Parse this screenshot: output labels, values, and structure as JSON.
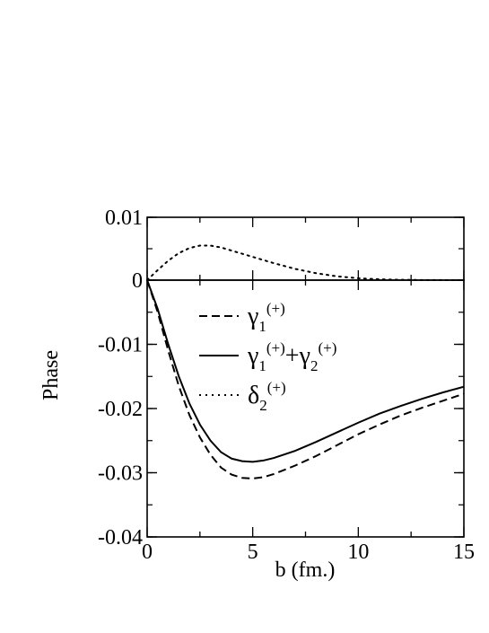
{
  "chart_data": {
    "type": "line",
    "panels": [
      {
        "id": "top",
        "ylim": [
          0,
          0.01
        ],
        "yticks": [
          "0.01",
          "0"
        ],
        "series": [
          {
            "name_ref": "delta2",
            "style": "dotted",
            "points": [
              [
                0,
                0
              ],
              [
                0.5,
                0.0016
              ],
              [
                1,
                0.0031
              ],
              [
                1.5,
                0.0043
              ],
              [
                2,
                0.0051
              ],
              [
                2.5,
                0.0055
              ],
              [
                3,
                0.0055
              ],
              [
                3.5,
                0.0052
              ],
              [
                4,
                0.0047
              ],
              [
                5,
                0.0037
              ],
              [
                6,
                0.0027
              ],
              [
                7,
                0.0018
              ],
              [
                8,
                0.0011
              ],
              [
                9,
                0.0006
              ],
              [
                10,
                0.0003
              ],
              [
                11,
                0.00013
              ],
              [
                12,
                6e-05
              ],
              [
                13,
                2e-05
              ],
              [
                14,
                1e-05
              ],
              [
                15,
                0
              ]
            ]
          }
        ]
      },
      {
        "id": "bottom",
        "ylim": [
          -0.04,
          0
        ],
        "yticks": [
          "-0.01",
          "-0.02",
          "-0.03",
          "-0.04"
        ],
        "series": [
          {
            "name_ref": "gamma1",
            "style": "dashed",
            "points": [
              [
                0,
                0
              ],
              [
                0.5,
                -0.005
              ],
              [
                1,
                -0.011
              ],
              [
                1.5,
                -0.0165
              ],
              [
                2,
                -0.021
              ],
              [
                2.5,
                -0.0245
              ],
              [
                3,
                -0.0272
              ],
              [
                3.5,
                -0.0292
              ],
              [
                4,
                -0.0303
              ],
              [
                4.5,
                -0.0308
              ],
              [
                5,
                -0.0309
              ],
              [
                5.5,
                -0.0307
              ],
              [
                6,
                -0.0302
              ],
              [
                7,
                -0.0289
              ],
              [
                8,
                -0.0274
              ],
              [
                9,
                -0.0257
              ],
              [
                10,
                -0.024
              ],
              [
                11,
                -0.0225
              ],
              [
                12,
                -0.0211
              ],
              [
                13,
                -0.0199
              ],
              [
                14,
                -0.0188
              ],
              [
                15,
                -0.0177
              ]
            ]
          },
          {
            "name_ref": "gamma12",
            "style": "solid",
            "points": [
              [
                0,
                0
              ],
              [
                0.5,
                -0.0045
              ],
              [
                1,
                -0.01
              ],
              [
                1.5,
                -0.015
              ],
              [
                2,
                -0.0192
              ],
              [
                2.5,
                -0.0225
              ],
              [
                3,
                -0.025
              ],
              [
                3.5,
                -0.0268
              ],
              [
                4,
                -0.0278
              ],
              [
                4.5,
                -0.0282
              ],
              [
                5,
                -0.0283
              ],
              [
                5.5,
                -0.0281
              ],
              [
                6,
                -0.0277
              ],
              [
                7,
                -0.0266
              ],
              [
                8,
                -0.0252
              ],
              [
                9,
                -0.0237
              ],
              [
                10,
                -0.0222
              ],
              [
                11,
                -0.0208
              ],
              [
                12,
                -0.0196
              ],
              [
                13,
                -0.0185
              ],
              [
                14,
                -0.0175
              ],
              [
                15,
                -0.0166
              ]
            ]
          }
        ]
      }
    ],
    "xlim": [
      0,
      15
    ],
    "xticks": [
      "0",
      "5",
      "10",
      "15"
    ],
    "xlabel": "b (fm.)",
    "ylabel": "Phase",
    "legend": {
      "gamma1": {
        "parts": [
          [
            "γ",
            "base"
          ],
          [
            "1",
            "sub"
          ],
          [
            "(+)",
            "sup"
          ]
        ]
      },
      "gamma12": {
        "parts": [
          [
            "γ",
            "base"
          ],
          [
            "1",
            "sub"
          ],
          [
            "(+)",
            "sup"
          ],
          [
            "+γ",
            "base"
          ],
          [
            "2",
            "sub"
          ],
          [
            "(+)",
            "sup"
          ]
        ]
      },
      "delta2": {
        "parts": [
          [
            "δ",
            "base"
          ],
          [
            "2",
            "sub"
          ],
          [
            "(+)",
            "sup"
          ]
        ]
      }
    },
    "legend_order": [
      "gamma1",
      "gamma12",
      "delta2"
    ],
    "legend_position": "top-center of lower panel",
    "grid": false
  }
}
